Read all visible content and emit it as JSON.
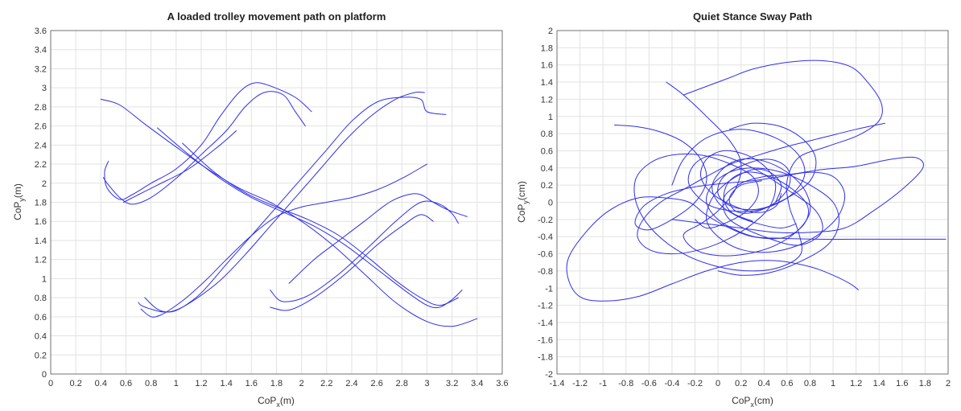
{
  "colors": {
    "trace": "#2f2fe8",
    "grid": "#e2e2e2",
    "axis": "#555555"
  },
  "chart_data": [
    {
      "type": "line",
      "title": "A loaded trolley movement path on platform",
      "xlabel_main": "CoP",
      "xlabel_sub": "x",
      "xlabel_unit": "(m)",
      "ylabel_main": "CoP",
      "ylabel_sub": "y",
      "ylabel_unit": "(m)",
      "xlim": [
        0,
        3.6
      ],
      "ylim": [
        0,
        3.6
      ],
      "xticks": [
        0,
        0.2,
        0.4,
        0.6,
        0.8,
        1,
        1.2,
        1.4,
        1.6,
        1.8,
        2,
        2.2,
        2.4,
        2.6,
        2.8,
        3,
        3.2,
        3.4,
        3.6
      ],
      "yticks": [
        0,
        0.2,
        0.4,
        0.6,
        0.8,
        1,
        1.2,
        1.4,
        1.6,
        1.8,
        2,
        2.2,
        2.4,
        2.6,
        2.8,
        3,
        3.2,
        3.4,
        3.6
      ],
      "grid": true,
      "series": [
        {
          "x": [
            2.08,
            1.95,
            1.75,
            1.62,
            1.5,
            1.35,
            1.2,
            1.0,
            0.8,
            0.65,
            0.55,
            0.45,
            0.43,
            0.46
          ],
          "y": [
            2.75,
            2.9,
            3.02,
            3.05,
            2.95,
            2.7,
            2.4,
            2.15,
            2.0,
            1.88,
            1.83,
            1.95,
            2.12,
            2.23
          ]
        },
        {
          "x": [
            2.03,
            1.95,
            1.85,
            1.7,
            1.55,
            1.4,
            1.2,
            1.0,
            0.8,
            0.65,
            0.55,
            0.45,
            0.42
          ],
          "y": [
            2.6,
            2.75,
            2.93,
            2.95,
            2.8,
            2.55,
            2.3,
            2.05,
            1.85,
            1.78,
            1.85,
            2.0,
            2.06
          ]
        },
        {
          "x": [
            1.48,
            1.35,
            1.1,
            0.85,
            0.7,
            0.58
          ],
          "y": [
            2.55,
            2.4,
            2.15,
            1.98,
            1.88,
            1.8
          ]
        },
        {
          "x": [
            3.15,
            3.0,
            2.95,
            2.8,
            2.6,
            2.4,
            2.2,
            2.0,
            1.8,
            1.6,
            1.4,
            1.2,
            1.05,
            0.95,
            0.85,
            0.75
          ],
          "y": [
            2.72,
            2.75,
            2.88,
            2.9,
            2.85,
            2.65,
            2.35,
            2.05,
            1.75,
            1.45,
            1.15,
            0.85,
            0.7,
            0.65,
            0.68,
            0.8
          ]
        },
        {
          "x": [
            2.98,
            2.9,
            2.75,
            2.55,
            2.35,
            2.15,
            1.95,
            1.75,
            1.55,
            1.35,
            1.15,
            1.0,
            0.9,
            0.8,
            0.72,
            0.7
          ],
          "y": [
            2.95,
            2.95,
            2.88,
            2.7,
            2.45,
            2.15,
            1.85,
            1.55,
            1.25,
            0.98,
            0.78,
            0.67,
            0.65,
            0.68,
            0.72,
            0.75
          ]
        },
        {
          "x": [
            3.0,
            2.8,
            2.6,
            2.4,
            2.2,
            2.0,
            1.8,
            1.6,
            1.4,
            1.25,
            1.1,
            0.98,
            0.88,
            0.8,
            0.72
          ],
          "y": [
            2.2,
            2.05,
            1.93,
            1.85,
            1.8,
            1.75,
            1.65,
            1.45,
            1.2,
            1.0,
            0.82,
            0.7,
            0.62,
            0.6,
            0.68
          ]
        },
        {
          "x": [
            0.4,
            0.55,
            0.75,
            1.0,
            1.25,
            1.5,
            1.75,
            2.0,
            2.25,
            2.5,
            2.75,
            3.0,
            3.2,
            3.4
          ],
          "y": [
            2.88,
            2.82,
            2.62,
            2.38,
            2.15,
            1.95,
            1.8,
            1.6,
            1.35,
            1.05,
            0.75,
            0.55,
            0.5,
            0.58
          ]
        },
        {
          "x": [
            0.85,
            1.1,
            1.35,
            1.6,
            1.85,
            2.1,
            2.35,
            2.6,
            2.85,
            3.0,
            3.1,
            3.2,
            3.28
          ],
          "y": [
            2.58,
            2.3,
            2.05,
            1.85,
            1.7,
            1.55,
            1.35,
            1.1,
            0.85,
            0.72,
            0.7,
            0.78,
            0.88
          ]
        },
        {
          "x": [
            1.05,
            1.3,
            1.55,
            1.8,
            2.05,
            2.3,
            2.55,
            2.75,
            2.95,
            3.1,
            3.25
          ],
          "y": [
            2.42,
            2.12,
            1.9,
            1.75,
            1.62,
            1.45,
            1.2,
            0.98,
            0.8,
            0.72,
            0.8
          ]
        },
        {
          "x": [
            1.9,
            2.1,
            2.3,
            2.5,
            2.7,
            2.85,
            2.95,
            3.05,
            3.15,
            3.25,
            3.32
          ],
          "y": [
            0.95,
            1.2,
            1.4,
            1.6,
            1.8,
            1.88,
            1.88,
            1.8,
            1.73,
            1.68,
            1.65
          ]
        },
        {
          "x": [
            1.75,
            1.85,
            2.05,
            2.3,
            2.55,
            2.75,
            2.95,
            3.1,
            3.2,
            3.25
          ],
          "y": [
            0.88,
            0.76,
            0.82,
            1.05,
            1.35,
            1.6,
            1.8,
            1.78,
            1.68,
            1.58
          ]
        },
        {
          "x": [
            1.75,
            1.9,
            2.1,
            2.35,
            2.6,
            2.8,
            2.95,
            3.05
          ],
          "y": [
            0.7,
            0.67,
            0.8,
            1.05,
            1.35,
            1.55,
            1.67,
            1.6
          ]
        }
      ]
    },
    {
      "type": "line",
      "title": "Quiet Stance Sway Path",
      "xlabel_main": "CoP",
      "xlabel_sub": "x",
      "xlabel_unit": "(cm)",
      "ylabel_main": "CoP",
      "ylabel_sub": "y",
      "ylabel_unit": "(cm)",
      "xlim": [
        -1.4,
        2
      ],
      "ylim": [
        -2,
        2
      ],
      "xticks": [
        -1.4,
        -1.2,
        -1,
        -0.8,
        -0.6,
        -0.4,
        -0.2,
        0,
        0.2,
        0.4,
        0.6,
        0.8,
        1,
        1.2,
        1.4,
        1.6,
        1.8,
        2
      ],
      "yticks": [
        -2,
        -1.8,
        -1.6,
        -1.4,
        -1.2,
        -1,
        -0.8,
        -0.6,
        -0.4,
        -0.2,
        0,
        0.2,
        0.4,
        0.6,
        0.8,
        1,
        1.2,
        1.4,
        1.6,
        1.8,
        2
      ],
      "grid": true,
      "series": [
        {
          "x": [
            1.98,
            1.6,
            1.2,
            0.85,
            0.55,
            0.3,
            0.1,
            -0.1,
            -0.25,
            -0.45,
            -0.7,
            -0.95,
            -1.15,
            -1.3,
            -1.3,
            -1.2,
            -1.0,
            -0.7,
            -0.4,
            -0.1,
            0.2,
            0.5,
            0.8,
            1.0,
            1.15,
            1.22
          ],
          "y": [
            -0.43,
            -0.43,
            -0.43,
            -0.43,
            -0.42,
            -0.4,
            -0.3,
            -0.15,
            0.0,
            0.05,
            0.05,
            -0.1,
            -0.35,
            -0.65,
            -0.9,
            -1.1,
            -1.15,
            -1.1,
            -0.95,
            -0.8,
            -0.7,
            -0.68,
            -0.75,
            -0.85,
            -0.95,
            -1.02
          ]
        },
        {
          "x": [
            -0.4,
            -0.1,
            0.2,
            0.5,
            0.8,
            1.1,
            1.35,
            1.6,
            1.78,
            1.72,
            1.5,
            1.2,
            0.9,
            0.6,
            0.4,
            0.2,
            0.05,
            0.1,
            0.4,
            0.7,
            0.9,
            0.85,
            0.6,
            0.3,
            0.0,
            -0.2,
            -0.25,
            -0.05,
            0.3,
            0.6,
            0.75,
            0.7,
            0.5,
            0.2,
            -0.1,
            -0.3,
            -0.4
          ],
          "y": [
            -0.2,
            -0.25,
            -0.3,
            -0.35,
            -0.35,
            -0.3,
            -0.1,
            0.15,
            0.4,
            0.52,
            0.5,
            0.42,
            0.38,
            0.32,
            0.3,
            0.22,
            0.05,
            -0.2,
            -0.4,
            -0.5,
            -0.35,
            -0.1,
            0.15,
            0.4,
            0.55,
            0.45,
            0.2,
            -0.05,
            -0.1,
            0.05,
            0.3,
            0.55,
            0.75,
            0.85,
            0.75,
            0.5,
            0.2
          ]
        },
        {
          "x": [
            -0.3,
            -0.1,
            0.1,
            0.3,
            0.6,
            0.9,
            1.15,
            1.3,
            1.42,
            1.4,
            1.22,
            0.95,
            0.7,
            0.6,
            0.62,
            0.7,
            0.72,
            0.55,
            0.3,
            0.0,
            -0.3,
            -0.55,
            -0.7,
            -0.72,
            -0.6,
            -0.4,
            -0.15,
            0.1,
            0.3,
            0.35,
            0.25,
            0.05,
            -0.1,
            -0.2
          ],
          "y": [
            1.25,
            1.35,
            1.45,
            1.55,
            1.63,
            1.65,
            1.58,
            1.4,
            1.15,
            0.95,
            0.78,
            0.65,
            0.52,
            0.25,
            -0.05,
            -0.35,
            -0.6,
            -0.75,
            -0.8,
            -0.75,
            -0.6,
            -0.35,
            -0.05,
            0.25,
            0.45,
            0.55,
            0.55,
            0.45,
            0.3,
            0.1,
            -0.1,
            -0.25,
            -0.3,
            -0.2
          ]
        },
        {
          "x": [
            -0.45,
            -0.3,
            -0.1,
            0.1,
            0.2,
            0.15,
            0.0,
            -0.15,
            -0.3,
            -0.2,
            0.0,
            0.25,
            0.5,
            0.7,
            0.8,
            0.75,
            0.6,
            0.4,
            0.2,
            0.05,
            -0.05,
            0.0,
            0.15,
            0.35,
            0.55,
            0.68
          ],
          "y": [
            1.4,
            1.25,
            1.0,
            0.72,
            0.45,
            0.15,
            -0.1,
            -0.25,
            -0.38,
            -0.55,
            -0.62,
            -0.6,
            -0.5,
            -0.32,
            -0.1,
            0.15,
            0.35,
            0.48,
            0.5,
            0.4,
            0.2,
            0.0,
            -0.15,
            -0.25,
            -0.3,
            -0.25
          ]
        },
        {
          "x": [
            1.45,
            1.2,
            0.9,
            0.6,
            0.35,
            0.12,
            -0.1,
            -0.3,
            -0.5,
            -0.65,
            -0.7,
            -0.6,
            -0.4,
            -0.15,
            0.1,
            0.3,
            0.45,
            0.5,
            0.42,
            0.25,
            0.05,
            -0.1,
            -0.15,
            -0.05,
            0.15,
            0.35,
            0.5,
            0.55
          ],
          "y": [
            0.92,
            0.85,
            0.75,
            0.65,
            0.55,
            0.45,
            0.3,
            0.15,
            0.0,
            -0.2,
            -0.4,
            -0.55,
            -0.6,
            -0.55,
            -0.42,
            -0.25,
            -0.05,
            0.2,
            0.4,
            0.55,
            0.6,
            0.5,
            0.3,
            0.1,
            -0.05,
            -0.12,
            -0.05,
            0.1
          ]
        },
        {
          "x": [
            -0.9,
            -0.7,
            -0.5,
            -0.3,
            -0.15,
            -0.1,
            -0.2,
            -0.4,
            -0.6,
            -0.72,
            -0.65,
            -0.45,
            -0.2,
            0.05,
            0.3,
            0.55,
            0.8,
            1.0,
            1.1,
            1.05,
            0.9,
            0.7,
            0.45,
            0.2,
            0.0,
            -0.1,
            -0.05,
            0.1,
            0.3,
            0.45,
            0.55,
            0.5
          ],
          "y": [
            0.9,
            0.88,
            0.82,
            0.7,
            0.5,
            0.25,
            0.0,
            -0.2,
            -0.32,
            -0.25,
            -0.05,
            0.1,
            0.18,
            0.22,
            0.25,
            0.3,
            0.35,
            0.3,
            0.1,
            -0.15,
            -0.35,
            -0.5,
            -0.58,
            -0.55,
            -0.4,
            -0.2,
            0.05,
            0.25,
            0.38,
            0.35,
            0.2,
            0.0
          ]
        },
        {
          "x": [
            0.0,
            0.2,
            0.45,
            0.7,
            0.95,
            1.05,
            1.0,
            0.8,
            0.55,
            0.3,
            0.1,
            -0.05,
            -0.1,
            0.0,
            0.2,
            0.4,
            0.6,
            0.75,
            0.78,
            0.65,
            0.45,
            0.25,
            0.1,
            0.05,
            0.12,
            0.3
          ],
          "y": [
            -0.8,
            -0.85,
            -0.82,
            -0.7,
            -0.5,
            -0.25,
            0.0,
            0.2,
            0.35,
            0.4,
            0.35,
            0.2,
            0.0,
            -0.2,
            -0.35,
            -0.42,
            -0.4,
            -0.25,
            -0.05,
            0.15,
            0.3,
            0.35,
            0.25,
            0.05,
            -0.12,
            -0.22
          ]
        },
        {
          "x": [
            0.1,
            0.3,
            0.55,
            0.75,
            0.85,
            0.8,
            0.6,
            0.35,
            0.12,
            0.0,
            0.05,
            0.25,
            0.45,
            0.6,
            0.62,
            0.5,
            0.3,
            0.15,
            0.1,
            0.2,
            0.38
          ],
          "y": [
            0.85,
            0.92,
            0.88,
            0.72,
            0.5,
            0.25,
            0.05,
            -0.08,
            -0.05,
            0.1,
            0.3,
            0.45,
            0.5,
            0.4,
            0.2,
            0.0,
            -0.12,
            -0.1,
            0.05,
            0.2,
            0.25
          ]
        }
      ]
    }
  ]
}
